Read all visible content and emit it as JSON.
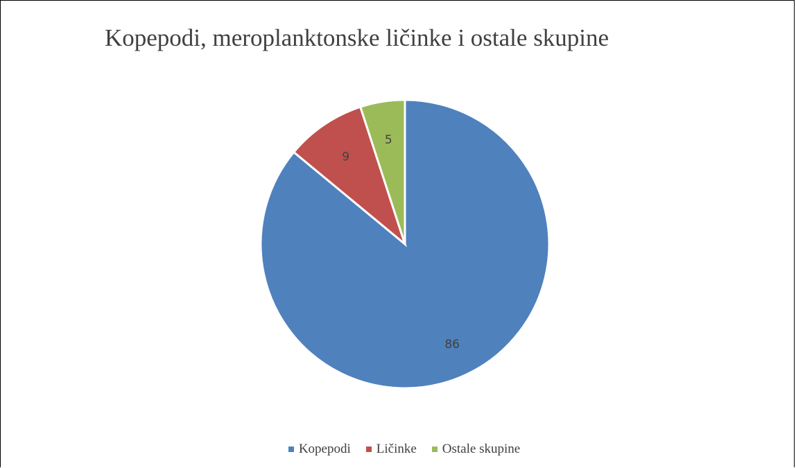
{
  "chart_data": {
    "type": "pie",
    "title": "Kopepodi, meroplanktonske ličinke i ostale skupine",
    "categories": [
      "Kopepodi",
      "Ličinke",
      "Ostale skupine"
    ],
    "values": [
      86,
      9,
      5
    ],
    "data_labels": [
      "86",
      "9",
      "5"
    ],
    "colors": [
      "#4F81BD",
      "#C0504D",
      "#9BBB59"
    ],
    "legend_position": "bottom"
  },
  "legend": {
    "items": [
      {
        "label": "Kopepodi",
        "color": "#4F81BD"
      },
      {
        "label": "Ličinke",
        "color": "#C0504D"
      },
      {
        "label": "Ostale skupine",
        "color": "#9BBB59"
      }
    ]
  }
}
